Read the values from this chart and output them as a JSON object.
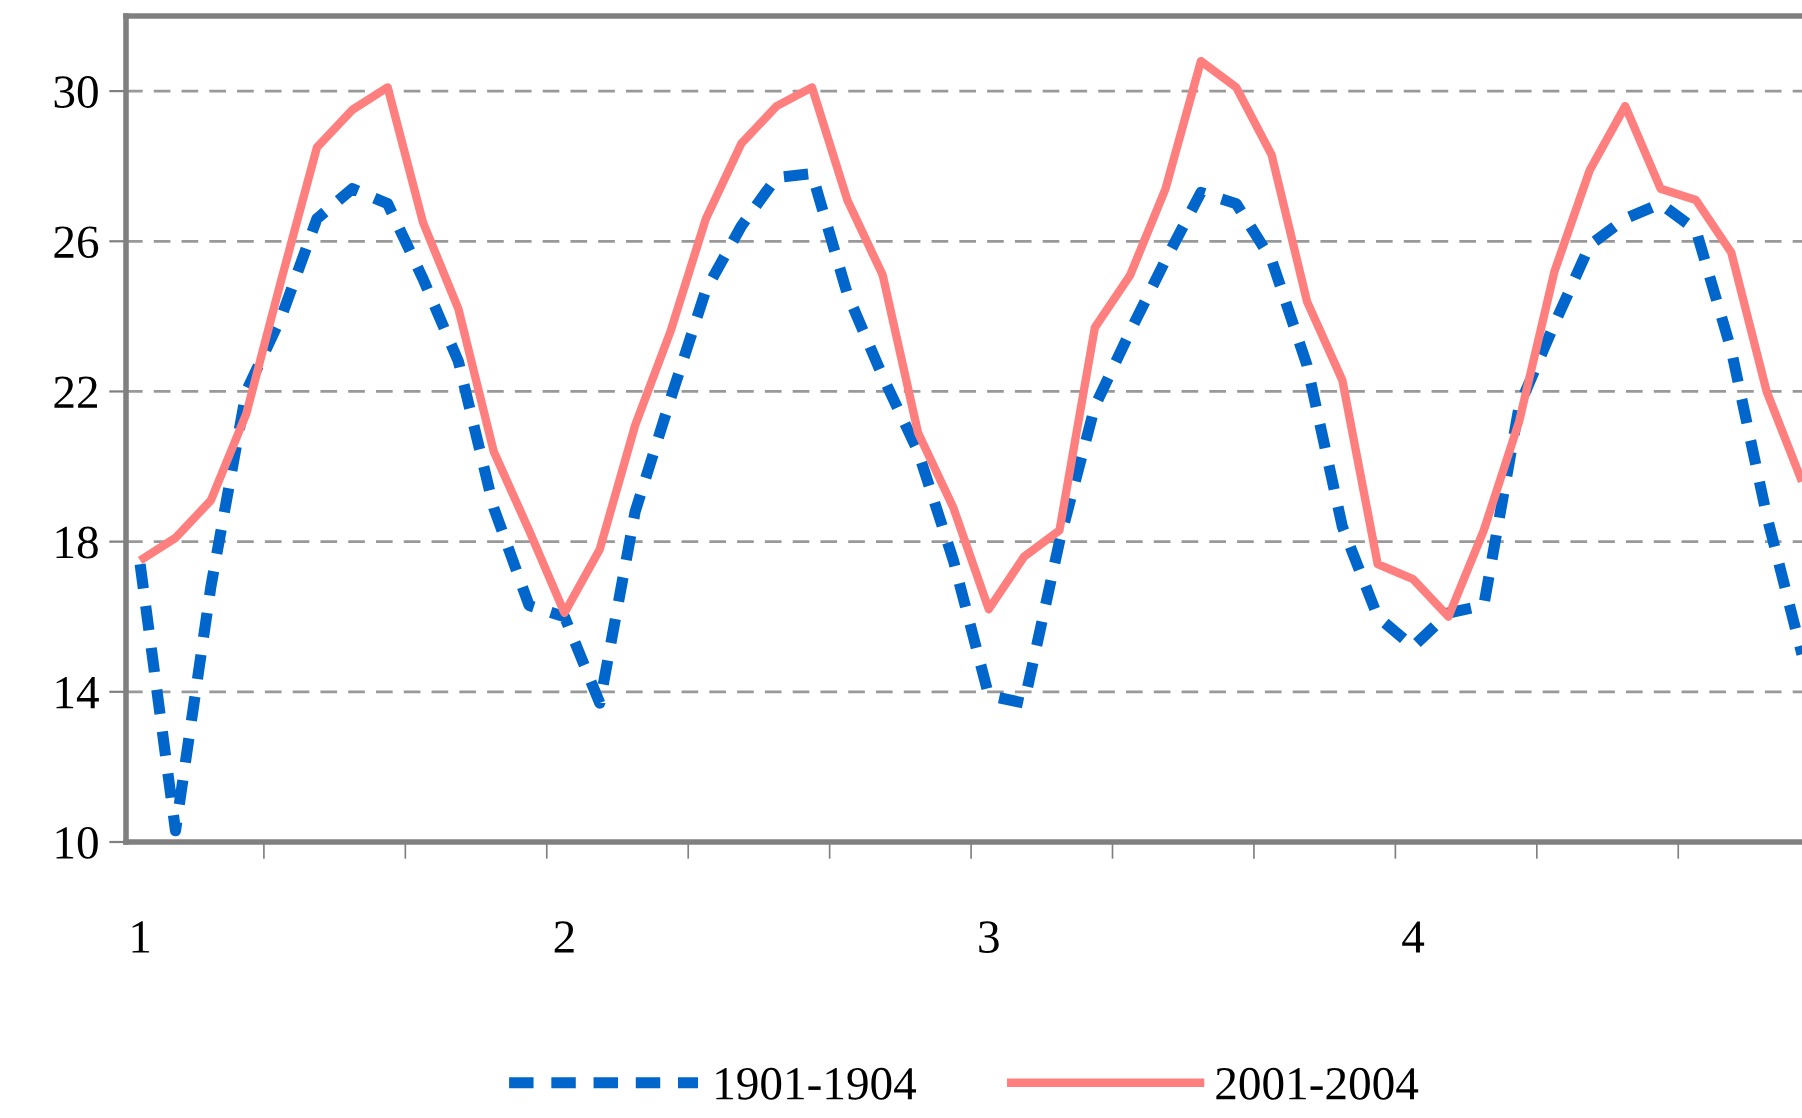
{
  "chart_data": {
    "type": "line",
    "categories": [
      "1",
      null,
      null,
      null,
      null,
      null,
      null,
      null,
      null,
      null,
      null,
      null,
      "2",
      null,
      null,
      null,
      null,
      null,
      null,
      null,
      null,
      null,
      null,
      null,
      "3",
      null,
      null,
      null,
      null,
      null,
      null,
      null,
      null,
      null,
      null,
      null,
      "4",
      null,
      null,
      null,
      null,
      null,
      null,
      null,
      null,
      null,
      null,
      null
    ],
    "series": [
      {
        "name": "1901-1904",
        "color": "#0066cc",
        "line_style": "dashed",
        "values": [
          17.4,
          10.3,
          16.8,
          22.0,
          24.0,
          26.6,
          27.4,
          27.0,
          25.0,
          22.8,
          18.9,
          16.3,
          16.0,
          13.7,
          18.8,
          21.8,
          24.7,
          26.4,
          27.7,
          27.8,
          24.6,
          22.4,
          20.4,
          17.5,
          13.9,
          13.7,
          18.0,
          21.6,
          23.6,
          25.5,
          27.3,
          27.0,
          25.5,
          22.7,
          18.4,
          16.0,
          15.2,
          16.1,
          16.3,
          21.6,
          23.8,
          25.9,
          26.6,
          27.0,
          26.3,
          23.1,
          18.7,
          15.0
        ]
      },
      {
        "name": "2001-2004",
        "color": "#ff7f7f",
        "line_style": "solid",
        "values": [
          17.5,
          18.1,
          19.1,
          21.4,
          25.0,
          28.5,
          29.5,
          30.1,
          26.5,
          24.2,
          20.4,
          18.3,
          16.1,
          17.8,
          21.1,
          23.6,
          26.6,
          28.6,
          29.6,
          30.1,
          27.1,
          25.1,
          20.9,
          18.9,
          16.2,
          17.6,
          18.3,
          23.7,
          25.1,
          27.4,
          30.8,
          30.1,
          28.3,
          24.4,
          22.3,
          17.4,
          17.0,
          16.0,
          18.3,
          21.2,
          25.2,
          27.9,
          29.6,
          27.4,
          27.1,
          25.7,
          22.0,
          19.6
        ]
      }
    ],
    "ylim": [
      10,
      32
    ],
    "yticks": [
      10,
      14,
      18,
      22,
      26,
      30
    ],
    "grid": "y",
    "legend": "bottom",
    "marker": "none"
  }
}
